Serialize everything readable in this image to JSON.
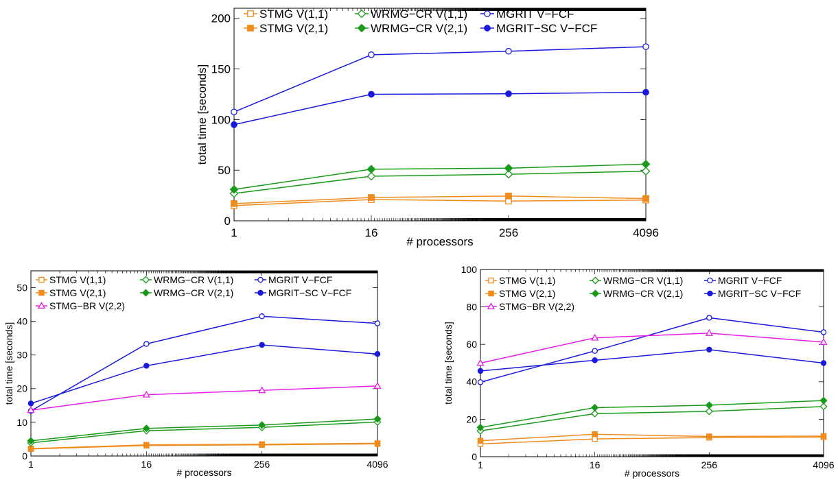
{
  "chart_data": [
    {
      "type": "line",
      "xscale": "log2",
      "x": [
        1,
        16,
        256,
        4096
      ],
      "xticks": [
        "1",
        "16",
        "256",
        "4096"
      ],
      "xlabel": "# processors",
      "ylabel": "total time [seconds]",
      "ylim": [
        0,
        210
      ],
      "yticks": [
        0,
        50,
        100,
        150,
        200
      ],
      "legend_position": "top",
      "legend_columns": 3,
      "series": [
        {
          "name": "STMG V(1,1)",
          "color": "#f08c1e",
          "marker": "square-open",
          "values": [
            15,
            21,
            19.5,
            20.5
          ]
        },
        {
          "name": "STMG V(2,1)",
          "color": "#f08c1e",
          "marker": "square-filled",
          "values": [
            17,
            23,
            24.5,
            22
          ]
        },
        {
          "name": "WRMG−CR V(1,1)",
          "color": "#1a9a1a",
          "marker": "diamond-open",
          "values": [
            27,
            44,
            46,
            49
          ]
        },
        {
          "name": "WRMG−CR V(2,1)",
          "color": "#1a9a1a",
          "marker": "diamond-filled",
          "values": [
            31,
            51,
            52,
            56
          ]
        },
        {
          "name": "MGRIT V−FCF",
          "color": "#1a1adc",
          "marker": "circle-open",
          "values": [
            107.5,
            164,
            167.5,
            172
          ]
        },
        {
          "name": "MGRIT−SC V−FCF",
          "color": "#1a1adc",
          "marker": "circle-filled",
          "values": [
            95,
            125,
            125.5,
            127
          ]
        }
      ]
    },
    {
      "type": "line",
      "xscale": "log2",
      "x": [
        1,
        16,
        256,
        4096
      ],
      "xticks": [
        "1",
        "16",
        "256",
        "4096"
      ],
      "xlabel": "# processors",
      "ylabel": "total time [seconds]",
      "ylim": [
        0,
        55
      ],
      "yticks": [
        0,
        10,
        20,
        30,
        40,
        50
      ],
      "legend_position": "top-left",
      "legend_columns": 3,
      "series": [
        {
          "name": "STMG V(1,1)",
          "color": "#f08c1e",
          "marker": "square-open",
          "values": [
            2.2,
            3.3,
            3.5,
            3.8
          ]
        },
        {
          "name": "STMG V(2,1)",
          "color": "#f08c1e",
          "marker": "square-filled",
          "values": [
            2.1,
            3.1,
            3.3,
            3.6
          ]
        },
        {
          "name": "WRMG−CR V(1,1)",
          "color": "#1a9a1a",
          "marker": "diamond-open",
          "values": [
            3.9,
            7.5,
            8.5,
            10.1
          ]
        },
        {
          "name": "WRMG−CR V(2,1)",
          "color": "#1a9a1a",
          "marker": "diamond-filled",
          "values": [
            4.5,
            8.2,
            9.2,
            11.0
          ]
        },
        {
          "name": "MGRIT V−FCF",
          "color": "#1a1adc",
          "marker": "circle-open",
          "values": [
            13.4,
            33.3,
            41.5,
            39.4
          ]
        },
        {
          "name": "MGRIT−SC V−FCF",
          "color": "#1a1adc",
          "marker": "circle-filled",
          "values": [
            15.6,
            26.8,
            33.0,
            30.3
          ]
        },
        {
          "name": "STMG−BR V(2,2)",
          "color": "#e61ee6",
          "marker": "triangle-open",
          "values": [
            13.6,
            18.2,
            19.5,
            20.8
          ]
        }
      ]
    },
    {
      "type": "line",
      "xscale": "log2",
      "x": [
        1,
        16,
        256,
        4096
      ],
      "xticks": [
        "1",
        "16",
        "256",
        "4096"
      ],
      "xlabel": "# processors",
      "ylabel": "total time [seconds]",
      "ylim": [
        0,
        100
      ],
      "yticks": [
        0,
        20,
        40,
        60,
        80,
        100
      ],
      "legend_position": "top-left",
      "legend_columns": 3,
      "series": [
        {
          "name": "STMG V(1,1)",
          "color": "#f08c1e",
          "marker": "square-open",
          "values": [
            6.8,
            9.5,
            10.2,
            10.5
          ]
        },
        {
          "name": "STMG V(2,1)",
          "color": "#f08c1e",
          "marker": "square-filled",
          "values": [
            8.5,
            12.0,
            10.8,
            11.0
          ]
        },
        {
          "name": "WRMG−CR V(1,1)",
          "color": "#1a9a1a",
          "marker": "diamond-open",
          "values": [
            13.8,
            23.0,
            24.2,
            26.8
          ]
        },
        {
          "name": "WRMG−CR V(2,1)",
          "color": "#1a9a1a",
          "marker": "diamond-filled",
          "values": [
            15.6,
            26.2,
            27.5,
            30.0
          ]
        },
        {
          "name": "MGRIT V−FCF",
          "color": "#1a1adc",
          "marker": "circle-open",
          "values": [
            39.8,
            56.5,
            74.2,
            66.5
          ]
        },
        {
          "name": "MGRIT−SC V−FCF",
          "color": "#1a1adc",
          "marker": "circle-filled",
          "values": [
            45.8,
            51.5,
            57.2,
            50.0
          ]
        },
        {
          "name": "STMG−BR V(2,2)",
          "color": "#e61ee6",
          "marker": "triangle-open",
          "values": [
            50.0,
            63.5,
            66.0,
            61.2
          ]
        }
      ]
    }
  ]
}
